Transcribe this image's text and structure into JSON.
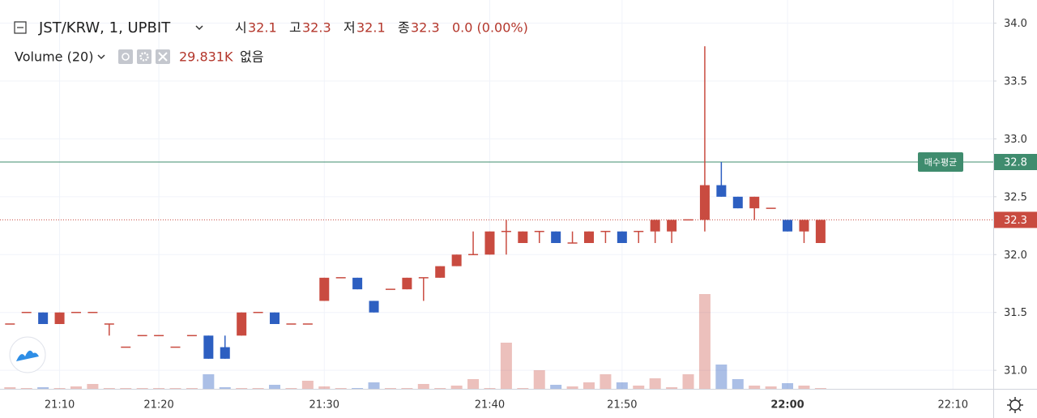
{
  "chart_data": {
    "type": "candlestick",
    "legend": {
      "symbol": "JST/KRW, 1, UPBIT",
      "open_label": "시",
      "open": 32.1,
      "high_label": "고",
      "high": 32.3,
      "low_label": "저",
      "low": 32.1,
      "close_label": "종",
      "close": 32.3,
      "change": "0.0 (0.00%)",
      "volume_title": "Volume (20)",
      "volume_value": {
        "value": 29831,
        "label": "29.831K"
      },
      "volume_extra": "없음"
    },
    "categories": [
      null,
      null,
      null,
      "21:10",
      null,
      null,
      null,
      null,
      null,
      "21:20",
      null,
      null,
      null,
      null,
      null,
      null,
      null,
      null,
      null,
      "21:30",
      null,
      null,
      null,
      null,
      null,
      null,
      null,
      null,
      null,
      "21:40",
      null,
      null,
      null,
      null,
      null,
      null,
      null,
      "21:50",
      null,
      null,
      null,
      null,
      null,
      null,
      null,
      null,
      null,
      "22:00",
      null,
      null,
      null,
      null,
      null,
      null,
      null,
      null,
      null,
      "22:10"
    ],
    "open": [
      31.4,
      31.5,
      31.5,
      31.4,
      31.5,
      31.5,
      31.4,
      31.2,
      31.3,
      31.3,
      31.2,
      31.3,
      31.3,
      31.2,
      31.3,
      31.5,
      31.5,
      31.4,
      31.4,
      31.6,
      31.8,
      31.8,
      31.6,
      31.7,
      31.7,
      31.8,
      31.8,
      31.9,
      32.0,
      32.0,
      32.2,
      32.1,
      32.2,
      32.2,
      32.1,
      32.1,
      32.2,
      32.2,
      32.2,
      32.2,
      32.2,
      32.3,
      32.3,
      32.6,
      32.5,
      32.4,
      32.4,
      32.3,
      32.2,
      32.1,
      null,
      null,
      null,
      null,
      null,
      null,
      null,
      null
    ],
    "high": [
      31.4,
      31.5,
      31.5,
      31.5,
      31.5,
      31.5,
      31.4,
      31.2,
      31.3,
      31.3,
      31.2,
      31.3,
      31.3,
      31.3,
      31.5,
      31.5,
      31.5,
      31.4,
      31.4,
      31.8,
      31.8,
      31.8,
      31.6,
      31.7,
      31.8,
      31.8,
      31.9,
      32.0,
      32.2,
      32.2,
      32.3,
      32.2,
      32.2,
      32.2,
      32.2,
      32.2,
      32.2,
      32.2,
      32.2,
      32.3,
      32.3,
      32.3,
      33.8,
      32.8,
      32.5,
      32.5,
      32.4,
      32.3,
      32.3,
      32.3,
      null,
      null,
      null,
      null,
      null,
      null,
      null,
      null
    ],
    "low": [
      31.4,
      31.5,
      31.4,
      31.4,
      31.5,
      31.5,
      31.3,
      31.2,
      31.3,
      31.3,
      31.2,
      31.3,
      31.1,
      31.1,
      31.3,
      31.5,
      31.4,
      31.4,
      31.4,
      31.6,
      31.8,
      31.7,
      31.5,
      31.7,
      31.7,
      31.6,
      31.8,
      31.9,
      32.0,
      32.0,
      32.0,
      32.1,
      32.1,
      32.1,
      32.1,
      32.1,
      32.1,
      32.1,
      32.1,
      32.1,
      32.1,
      32.3,
      32.2,
      32.5,
      32.4,
      32.3,
      32.4,
      32.2,
      32.1,
      32.1,
      null,
      null,
      null,
      null,
      null,
      null,
      null,
      null
    ],
    "close": [
      31.4,
      31.5,
      31.4,
      31.5,
      31.5,
      31.5,
      31.4,
      31.2,
      31.3,
      31.3,
      31.2,
      31.3,
      31.1,
      31.1,
      31.5,
      31.5,
      31.4,
      31.4,
      31.4,
      31.8,
      31.8,
      31.7,
      31.5,
      31.7,
      31.8,
      31.8,
      31.9,
      32.0,
      32.0,
      32.2,
      32.2,
      32.2,
      32.2,
      32.1,
      32.1,
      32.2,
      32.2,
      32.1,
      32.2,
      32.3,
      32.3,
      32.3,
      32.6,
      32.5,
      32.4,
      32.5,
      32.4,
      32.2,
      32.3,
      32.3,
      null,
      null,
      null,
      null,
      null,
      null,
      null,
      null
    ],
    "volume": [
      60000,
      30000,
      60000,
      30000,
      90000,
      180000,
      30000,
      30000,
      30000,
      30000,
      30000,
      30000,
      540000,
      60000,
      30000,
      30000,
      150000,
      30000,
      300000,
      90000,
      30000,
      30000,
      240000,
      30000,
      30000,
      180000,
      30000,
      120000,
      360000,
      30000,
      1710000,
      30000,
      690000,
      150000,
      90000,
      240000,
      540000,
      240000,
      120000,
      390000,
      60000,
      540000,
      3510000,
      900000,
      360000,
      120000,
      90000,
      210000,
      120000,
      29831,
      null,
      null,
      null,
      null,
      null,
      null,
      null,
      null
    ],
    "up_color": "#c94b40",
    "down_color": "#2d5fc1",
    "ylim": [
      30.84,
      34.2
    ],
    "yticks": [
      {
        "value": 31,
        "label": "31.0"
      },
      31.5,
      {
        "value": 32,
        "label": "32.0"
      },
      32.5,
      {
        "value": 33,
        "label": "33.0"
      },
      33.5,
      {
        "value": 34,
        "label": "34.0"
      }
    ],
    "grid": true,
    "avg_price_line": {
      "label": "매수평균",
      "value": 32.8,
      "color": "#3f8c6e"
    },
    "last_price_line": {
      "value": 32.3,
      "color": "#c94b40"
    }
  }
}
